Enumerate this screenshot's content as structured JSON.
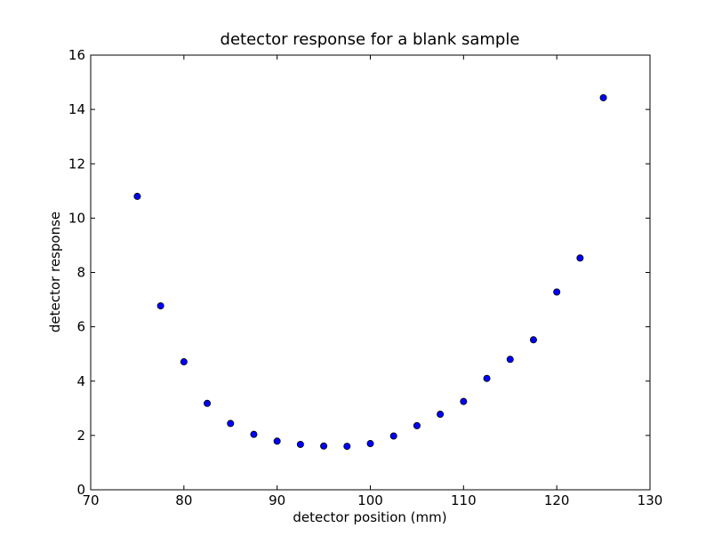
{
  "chart_data": {
    "type": "scatter",
    "title": "detector response for a blank sample",
    "xlabel": "detector position (mm)",
    "ylabel": "detector response",
    "xlim": [
      70,
      130
    ],
    "ylim": [
      0,
      16
    ],
    "xticks": [
      70,
      80,
      90,
      100,
      110,
      120,
      130
    ],
    "yticks": [
      0,
      2,
      4,
      6,
      8,
      10,
      12,
      14,
      16
    ],
    "grid": false,
    "marker_color": "#0000ff",
    "series": [
      {
        "x": [
          75,
          77.5,
          80,
          82.5,
          85,
          87.5,
          90,
          92.5,
          95,
          97.5,
          100,
          102.5,
          105,
          107.5,
          110,
          112.5,
          115,
          117.5,
          120,
          122.5,
          125
        ],
        "y": [
          10.8,
          6.77,
          4.71,
          3.18,
          2.44,
          2.04,
          1.79,
          1.67,
          1.61,
          1.6,
          1.7,
          1.98,
          2.36,
          2.78,
          3.25,
          4.1,
          4.8,
          5.52,
          7.28,
          8.53,
          14.43
        ]
      }
    ]
  }
}
